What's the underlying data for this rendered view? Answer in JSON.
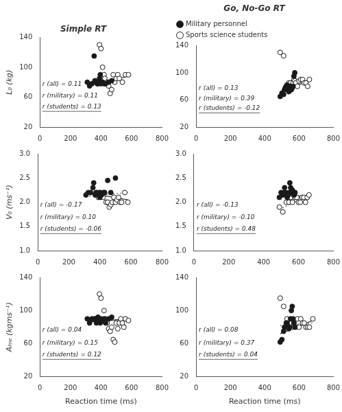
{
  "chart_data": [
    {
      "type": "scatter",
      "title": "Simple RT",
      "y_label": "L₀ (kg)",
      "xlim": [
        0,
        800
      ],
      "ylim": [
        20,
        140
      ],
      "xticks": [
        0,
        200,
        400,
        600,
        800
      ],
      "yticks": [
        20,
        60,
        100,
        140
      ],
      "grid": false,
      "annotations": [
        "r (all) = 0.11",
        "r (military) = 0.11",
        "r (students) = 0.13"
      ],
      "series": [
        {
          "name": "Military personnel",
          "color": "#1a1a1a",
          "marker": "circle",
          "x": [
            310,
            325,
            340,
            355,
            360,
            370,
            375,
            380,
            385,
            390,
            395,
            400,
            410,
            420,
            430,
            450,
            470
          ],
          "values": [
            80,
            75,
            78,
            115,
            82,
            80,
            78,
            78,
            80,
            85,
            90,
            78,
            80,
            78,
            78,
            80,
            82
          ]
        },
        {
          "name": "Sports science students",
          "color": "#1a1a1a",
          "marker": "open_circle",
          "x": [
            390,
            400,
            410,
            420,
            425,
            430,
            440,
            450,
            460,
            470,
            480,
            490,
            500,
            510,
            520,
            540,
            560,
            580
          ],
          "values": [
            130,
            125,
            100,
            90,
            85,
            78,
            80,
            75,
            65,
            70,
            90,
            80,
            85,
            90,
            85,
            80,
            90,
            90
          ]
        },
        {
          "type": "line",
          "color": "#1a1a1a",
          "line_style": "solid",
          "x": [
            310,
            580
          ],
          "values": [
            76,
            88
          ]
        }
      ]
    },
    {
      "type": "scatter",
      "title": "Go, No-Go RT",
      "legend": "top",
      "xlim": [
        0,
        800
      ],
      "ylim": [
        20,
        140
      ],
      "xticks": [
        0,
        200,
        400,
        600,
        800
      ],
      "yticks": [
        20,
        60,
        100,
        140
      ],
      "grid": false,
      "annotations": [
        "r (all) = 0.13",
        "r (military) = 0.39",
        "r (students) = -0.12"
      ],
      "series": [
        {
          "name": "Military personnel",
          "color": "#1a1a1a",
          "marker": "circle",
          "x": [
            490,
            500,
            510,
            515,
            520,
            525,
            530,
            535,
            540,
            545,
            550,
            555,
            560,
            565,
            570,
            575
          ],
          "values": [
            65,
            70,
            68,
            75,
            78,
            80,
            82,
            75,
            72,
            80,
            80,
            75,
            78,
            80,
            95,
            100
          ]
        },
        {
          "name": "Sports science students",
          "color": "#1a1a1a",
          "marker": "open_circle",
          "x": [
            490,
            510,
            525,
            540,
            550,
            555,
            560,
            565,
            570,
            575,
            580,
            590,
            600,
            610,
            620,
            630,
            640,
            650,
            660
          ],
          "values": [
            130,
            125,
            80,
            85,
            85,
            78,
            78,
            85,
            90,
            88,
            85,
            80,
            88,
            90,
            90,
            85,
            85,
            80,
            90
          ]
        },
        {
          "type": "line",
          "color": "#1a1a1a",
          "line_style": "solid",
          "x": [
            490,
            660
          ],
          "values": [
            72,
            88
          ]
        }
      ]
    },
    {
      "type": "scatter",
      "y_label": "V₀ (ms⁻¹)",
      "xlim": [
        0,
        800
      ],
      "ylim": [
        1.0,
        3.0
      ],
      "xticks": [
        0,
        200,
        400,
        600,
        800
      ],
      "yticks": [
        {
          "value": 1.0,
          "label": "1.0"
        },
        1.5,
        {
          "value": 2.0,
          "label": "2.0"
        },
        2.5,
        {
          "value": 3.0,
          "label": "3.0"
        }
      ],
      "grid": false,
      "annotations": [
        "r (all) = -0.17",
        "r (military) = 0.10",
        "r (students) = -0.06"
      ],
      "series": [
        {
          "name": "Military personnel",
          "color": "#1a1a1a",
          "marker": "circle",
          "x": [
            310,
            325,
            340,
            355,
            360,
            370,
            375,
            380,
            385,
            395,
            400,
            410,
            420,
            430,
            450,
            470,
            500
          ],
          "values": [
            2.15,
            2.2,
            2.2,
            2.3,
            2.4,
            2.15,
            2.2,
            2.2,
            2.15,
            2.2,
            2.1,
            2.15,
            2.2,
            2.2,
            2.45,
            2.2,
            2.5
          ]
        },
        {
          "name": "Sports science students",
          "color": "#1a1a1a",
          "marker": "open_circle",
          "x": [
            390,
            400,
            420,
            430,
            440,
            450,
            460,
            470,
            480,
            490,
            500,
            510,
            520,
            530,
            540,
            560,
            580
          ],
          "values": [
            2.1,
            2.2,
            2.1,
            2.2,
            2.0,
            2.0,
            1.9,
            1.95,
            2.0,
            2.1,
            2.0,
            2.05,
            2.1,
            2.0,
            2.0,
            2.2,
            2.0
          ]
        },
        {
          "type": "line",
          "color": "#1a1a1a",
          "line_style": "solid",
          "x": [
            310,
            580
          ],
          "values": [
            2.2,
            2.05
          ]
        },
        {
          "type": "line",
          "color": "#555555",
          "line_style": "dotted",
          "x": [
            310,
            580
          ],
          "values": [
            2.12,
            2.2
          ]
        }
      ]
    },
    {
      "type": "scatter",
      "xlim": [
        0,
        800
      ],
      "ylim": [
        1.0,
        3.0
      ],
      "xticks": [
        0,
        200,
        400,
        600,
        800
      ],
      "yticks": [
        {
          "value": 1.0,
          "label": "1.0"
        },
        1.5,
        {
          "value": 2.0,
          "label": "2.0"
        },
        2.5,
        {
          "value": 3.0,
          "label": "3.0"
        }
      ],
      "grid": false,
      "annotations": [
        "r (all) = -0.13",
        "r (military) = -0.10",
        "r (students) = 0.48"
      ],
      "series": [
        {
          "name": "Military personnel",
          "color": "#1a1a1a",
          "marker": "circle",
          "x": [
            490,
            500,
            510,
            515,
            520,
            525,
            530,
            535,
            540,
            545,
            550,
            555,
            560,
            565,
            570,
            575,
            580
          ],
          "values": [
            2.1,
            2.2,
            2.15,
            2.2,
            2.3,
            2.2,
            2.15,
            2.1,
            2.15,
            2.2,
            2.4,
            2.3,
            2.2,
            2.25,
            2.2,
            2.15,
            2.2
          ]
        },
        {
          "name": "Sports science students",
          "color": "#1a1a1a",
          "marker": "open_circle",
          "x": [
            490,
            510,
            530,
            545,
            555,
            565,
            570,
            580,
            590,
            600,
            610,
            620,
            630,
            640,
            650,
            660
          ],
          "values": [
            1.9,
            1.8,
            2.0,
            2.0,
            2.1,
            2.0,
            2.15,
            2.1,
            2.1,
            2.0,
            2.0,
            2.1,
            2.1,
            2.0,
            2.1,
            2.15
          ]
        },
        {
          "type": "line",
          "color": "#1a1a1a",
          "line_style": "solid",
          "x": [
            490,
            660
          ],
          "values": [
            2.18,
            2.1
          ]
        },
        {
          "type": "line",
          "color": "#555555",
          "line_style": "dotted",
          "x": [
            490,
            660
          ],
          "values": [
            1.85,
            2.15
          ]
        }
      ]
    },
    {
      "type": "scatter",
      "y_label": "Aₗᵢₙₑ (kgms⁻¹)",
      "x_label": "Reaction time (ms)",
      "xlim": [
        0,
        800
      ],
      "ylim": [
        20,
        140
      ],
      "xticks": [
        0,
        200,
        400,
        600,
        800
      ],
      "yticks": [
        20,
        60,
        100,
        140
      ],
      "grid": false,
      "annotations": [
        "r (all) = 0.04",
        "r (military) = 0.15",
        "r (students) = 0.12"
      ],
      "series": [
        {
          "name": "Military personnel",
          "color": "#1a1a1a",
          "marker": "circle",
          "x": [
            310,
            325,
            340,
            355,
            360,
            370,
            375,
            380,
            385,
            395,
            400,
            410,
            420,
            430,
            450,
            470
          ],
          "values": [
            90,
            85,
            90,
            90,
            90,
            85,
            88,
            92,
            90,
            85,
            90,
            88,
            90,
            85,
            90,
            92
          ]
        },
        {
          "name": "Sports science students",
          "color": "#1a1a1a",
          "marker": "open_circle",
          "x": [
            390,
            400,
            420,
            430,
            440,
            450,
            460,
            470,
            480,
            490,
            500,
            510,
            520,
            530,
            540,
            550,
            560,
            580
          ],
          "values": [
            120,
            115,
            100,
            90,
            85,
            78,
            75,
            80,
            65,
            62,
            85,
            78,
            85,
            90,
            85,
            80,
            90,
            88
          ]
        },
        {
          "type": "line",
          "color": "#1a1a1a",
          "line_style": "solid",
          "x": [
            310,
            580
          ],
          "values": [
            86,
            90
          ]
        },
        {
          "type": "line",
          "color": "#555555",
          "line_style": "dotted",
          "x": [
            310,
            580
          ],
          "values": [
            85,
            90
          ]
        }
      ]
    },
    {
      "type": "scatter",
      "x_label": "Reaction time (ms)",
      "xlim": [
        0,
        800
      ],
      "ylim": [
        20,
        140
      ],
      "xticks": [
        0,
        200,
        400,
        600,
        800
      ],
      "yticks": [
        20,
        60,
        100,
        140
      ],
      "grid": false,
      "annotations": [
        "r (all) = 0.08",
        "r (military) = 0.37",
        "r (students) = 0.04"
      ],
      "series": [
        {
          "name": "Military personnel",
          "color": "#1a1a1a",
          "marker": "circle",
          "x": [
            490,
            500,
            510,
            515,
            520,
            525,
            530,
            535,
            540,
            545,
            550,
            555,
            560,
            565,
            570,
            575
          ],
          "values": [
            62,
            65,
            75,
            80,
            80,
            85,
            85,
            80,
            78,
            80,
            90,
            100,
            105,
            90,
            85,
            80
          ]
        },
        {
          "name": "Sports science students",
          "color": "#1a1a1a",
          "marker": "open_circle",
          "x": [
            490,
            510,
            530,
            545,
            555,
            565,
            570,
            580,
            590,
            600,
            610,
            620,
            630,
            640,
            650,
            660,
            680
          ],
          "values": [
            115,
            105,
            90,
            85,
            85,
            80,
            85,
            80,
            90,
            80,
            90,
            85,
            85,
            80,
            80,
            80,
            90
          ]
        },
        {
          "type": "line",
          "color": "#1a1a1a",
          "line_style": "solid",
          "x": [
            490,
            680
          ],
          "values": [
            72,
            88
          ]
        },
        {
          "type": "line",
          "color": "#555555",
          "line_style": "dotted",
          "x": [
            490,
            680
          ],
          "values": [
            82,
            85
          ]
        }
      ]
    }
  ]
}
